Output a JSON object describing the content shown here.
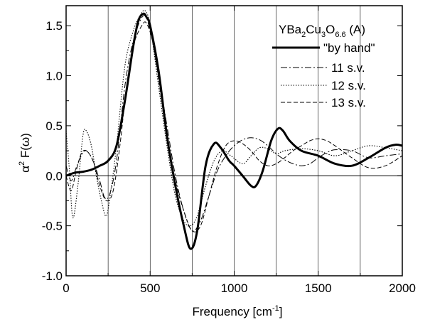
{
  "chart_data": {
    "type": "line",
    "title": "",
    "xlabel": "Frequency [cm",
    "xlabel_sup": "-1",
    "xlabel_suffix": "]",
    "ylabel_alpha": "α",
    "ylabel_sup": "2",
    "ylabel_rest": " F(ω)",
    "xlim": [
      0,
      2000
    ],
    "ylim": [
      -1.0,
      1.7
    ],
    "x_ticks": [
      0,
      500,
      1000,
      1500,
      2000
    ],
    "x_tick_labels": [
      "0",
      "500",
      "1000",
      "1500",
      "2000"
    ],
    "y_ticks": [
      -1.0,
      -0.5,
      0.0,
      0.5,
      1.0,
      1.5
    ],
    "y_tick_labels": [
      "-1.0",
      "-0.5",
      "0.0",
      "0.5",
      "1.0",
      "1.5"
    ],
    "vertical_gridlines": [
      250,
      500,
      750,
      1000,
      1250,
      1500,
      1750
    ],
    "zero_line": 0,
    "legend": {
      "position": "top-right",
      "title_parts": [
        "YBa",
        "2",
        "Cu",
        "3",
        "O",
        "6.6",
        " (A)"
      ]
    },
    "series": [
      {
        "name": "\"by hand\"",
        "style": "solid-thick",
        "x": [
          0,
          50,
          100,
          150,
          200,
          250,
          300,
          350,
          400,
          430,
          460,
          480,
          500,
          550,
          600,
          650,
          700,
          740,
          780,
          830,
          880,
          920,
          970,
          1000,
          1050,
          1100,
          1130,
          1170,
          1220,
          1260,
          1290,
          1330,
          1400,
          1500,
          1600,
          1700,
          1800,
          1900,
          1960,
          2000
        ],
        "y": [
          0.0,
          0.03,
          0.04,
          0.06,
          0.1,
          0.15,
          0.3,
          0.75,
          1.3,
          1.55,
          1.62,
          1.58,
          1.5,
          1.05,
          0.4,
          -0.1,
          -0.5,
          -0.73,
          -0.55,
          0.1,
          0.32,
          0.28,
          0.15,
          0.1,
          0.0,
          -0.1,
          -0.1,
          0.05,
          0.35,
          0.47,
          0.45,
          0.35,
          0.25,
          0.2,
          0.12,
          0.1,
          0.18,
          0.28,
          0.31,
          0.3
        ]
      },
      {
        "name": "11 s.v.",
        "style": "dash-dot",
        "x": [
          0,
          30,
          60,
          90,
          120,
          160,
          200,
          230,
          260,
          300,
          350,
          400,
          460,
          500,
          550,
          600,
          650,
          700,
          750,
          800,
          850,
          900,
          950,
          1000,
          1050,
          1100,
          1150,
          1200,
          1250,
          1300,
          1350,
          1400,
          1450,
          1500,
          1550,
          1600,
          1700,
          1800,
          1900,
          2000
        ],
        "y": [
          0.1,
          -0.05,
          0.08,
          0.2,
          0.25,
          0.15,
          -0.05,
          -0.22,
          -0.18,
          0.15,
          0.9,
          1.35,
          1.6,
          1.45,
          1.0,
          0.5,
          0.0,
          -0.35,
          -0.55,
          -0.45,
          -0.2,
          0.05,
          0.2,
          0.3,
          0.36,
          0.38,
          0.36,
          0.3,
          0.22,
          0.16,
          0.12,
          0.1,
          0.12,
          0.18,
          0.23,
          0.26,
          0.25,
          0.18,
          0.2,
          0.22
        ]
      },
      {
        "name": "12 s.v.",
        "style": "dotted",
        "x": [
          0,
          20,
          40,
          70,
          100,
          120,
          150,
          180,
          210,
          240,
          270,
          300,
          350,
          400,
          440,
          470,
          500,
          550,
          600,
          650,
          700,
          740,
          780,
          830,
          880,
          930,
          980,
          1050,
          1100,
          1150,
          1200,
          1250,
          1300,
          1400,
          1500,
          1600,
          1700,
          1800,
          1900,
          2000
        ],
        "y": [
          0.45,
          0.05,
          -0.42,
          -0.1,
          0.4,
          0.45,
          0.3,
          0.0,
          -0.25,
          -0.4,
          -0.1,
          0.3,
          1.1,
          1.45,
          1.6,
          1.65,
          1.5,
          0.9,
          0.3,
          -0.2,
          -0.45,
          -0.5,
          -0.4,
          -0.1,
          0.15,
          0.25,
          0.2,
          0.12,
          0.2,
          0.28,
          0.27,
          0.22,
          0.25,
          0.27,
          0.25,
          0.2,
          0.25,
          0.3,
          0.28,
          0.25
        ]
      },
      {
        "name": "13 s.v.",
        "style": "dashed",
        "x": [
          0,
          30,
          60,
          90,
          120,
          160,
          200,
          240,
          280,
          320,
          360,
          400,
          450,
          480,
          520,
          560,
          600,
          650,
          700,
          750,
          800,
          850,
          900,
          950,
          1000,
          1050,
          1100,
          1150,
          1200,
          1250,
          1300,
          1350,
          1400,
          1450,
          1500,
          1550,
          1600,
          1700,
          1800,
          1900,
          2000
        ],
        "y": [
          0.0,
          -0.15,
          0.05,
          0.22,
          0.25,
          0.15,
          -0.1,
          -0.25,
          -0.15,
          0.3,
          0.9,
          1.3,
          1.5,
          1.52,
          1.3,
          0.85,
          0.4,
          -0.05,
          -0.35,
          -0.55,
          -0.5,
          -0.2,
          0.1,
          0.3,
          0.35,
          0.32,
          0.25,
          0.15,
          0.1,
          0.12,
          0.18,
          0.25,
          0.3,
          0.35,
          0.37,
          0.35,
          0.3,
          0.18,
          0.08,
          0.1,
          0.2
        ]
      }
    ]
  }
}
